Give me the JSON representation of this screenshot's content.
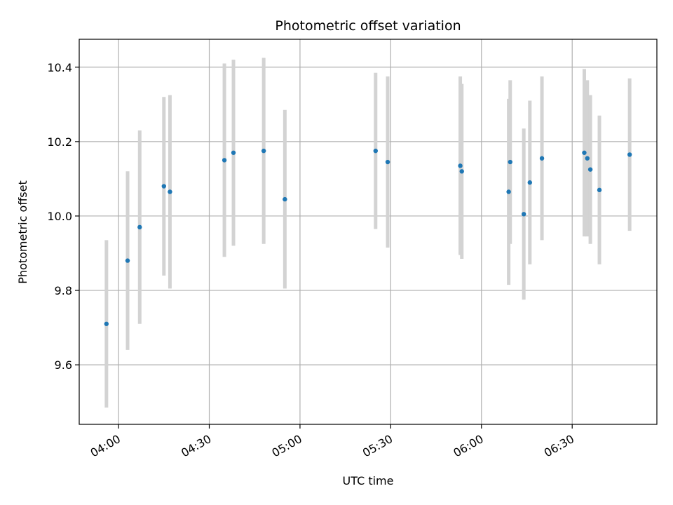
{
  "chart_data": {
    "type": "scatter",
    "title": "Photometric offset variation",
    "xlabel": "UTC time",
    "ylabel": "Photometric offset",
    "x_ticks": [
      "04:00",
      "04:30",
      "05:00",
      "05:30",
      "06:00",
      "06:30"
    ],
    "x_tick_values": [
      "04:00",
      "04:30",
      "05:00",
      "05:30",
      "06:00",
      "06:30"
    ],
    "xlim": [
      "03:47",
      "06:58"
    ],
    "y_ticks": [
      "9.6",
      "9.8",
      "10.0",
      "10.2",
      "10.4"
    ],
    "y_tick_values": [
      9.6,
      9.8,
      10.0,
      10.2,
      10.4
    ],
    "ylim": [
      9.44,
      10.475
    ],
    "grid": true,
    "point_color": "#1f77b4",
    "errorbar_color": "#d3d3d3",
    "series": [
      {
        "points": [
          {
            "time": "03:56",
            "y": 9.71,
            "err": 0.225
          },
          {
            "time": "04:03",
            "y": 9.88,
            "err": 0.24
          },
          {
            "time": "04:07",
            "y": 9.97,
            "err": 0.26
          },
          {
            "time": "04:15",
            "y": 10.08,
            "err": 0.24
          },
          {
            "time": "04:17",
            "y": 10.065,
            "err": 0.26
          },
          {
            "time": "04:35",
            "y": 10.15,
            "err": 0.26
          },
          {
            "time": "04:38",
            "y": 10.17,
            "err": 0.25
          },
          {
            "time": "04:48",
            "y": 10.175,
            "err": 0.25
          },
          {
            "time": "04:55",
            "y": 10.045,
            "err": 0.24
          },
          {
            "time": "05:25",
            "y": 10.175,
            "err": 0.21
          },
          {
            "time": "05:29",
            "y": 10.145,
            "err": 0.23
          },
          {
            "time": "05:53",
            "y": 10.135,
            "err": 0.24
          },
          {
            "time": "05:53.5",
            "y": 10.12,
            "err": 0.235
          },
          {
            "time": "06:09",
            "y": 10.065,
            "err": 0.25
          },
          {
            "time": "06:09.5",
            "y": 10.145,
            "err": 0.22
          },
          {
            "time": "06:14",
            "y": 10.005,
            "err": 0.23
          },
          {
            "time": "06:16",
            "y": 10.09,
            "err": 0.22
          },
          {
            "time": "06:20",
            "y": 10.155,
            "err": 0.22
          },
          {
            "time": "06:34",
            "y": 10.17,
            "err": 0.225
          },
          {
            "time": "06:35",
            "y": 10.155,
            "err": 0.21
          },
          {
            "time": "06:36",
            "y": 10.125,
            "err": 0.2
          },
          {
            "time": "06:39",
            "y": 10.07,
            "err": 0.2
          },
          {
            "time": "06:49",
            "y": 10.165,
            "err": 0.205
          }
        ]
      }
    ]
  }
}
